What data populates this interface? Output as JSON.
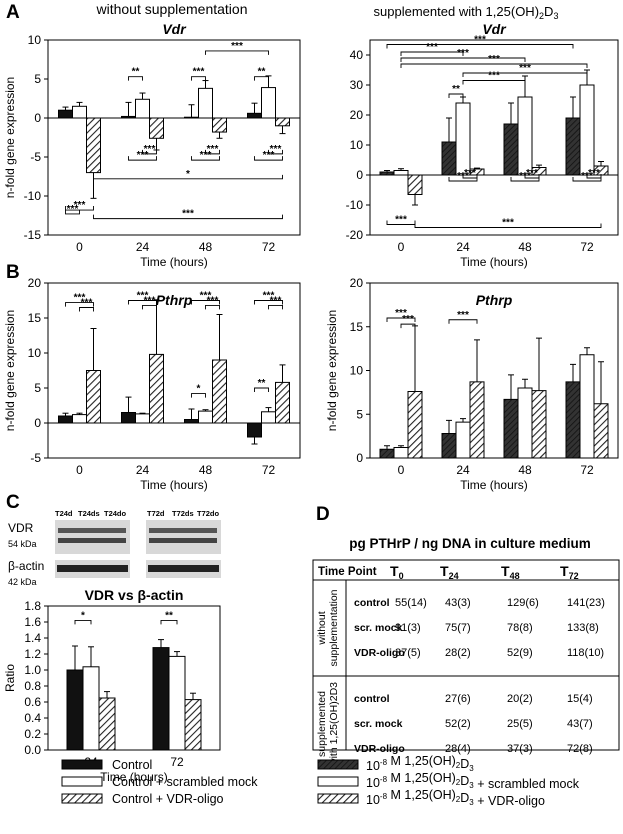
{
  "panels": {
    "A": {
      "letter": "A",
      "left_title": "without supplementation",
      "right_title_prefix": "supplemented with 1,25(OH)",
      "right_title_sub": "2",
      "right_title_suffix": "D",
      "right_title_sub2": "3"
    },
    "B": {
      "letter": "B"
    },
    "C": {
      "letter": "C"
    },
    "D": {
      "letter": "D"
    }
  },
  "chart_data": [
    {
      "id": "A-left",
      "type": "bar",
      "title": "Vdr",
      "xlabel": "Time (hours)",
      "ylabel": "n-fold gene expression",
      "categories": [
        "0",
        "24",
        "48",
        "72"
      ],
      "ylim": [
        -15,
        10
      ],
      "yticks": [
        -15,
        -10,
        -5,
        0,
        5,
        10
      ],
      "series": [
        {
          "name": "Control",
          "values": [
            1.0,
            0.2,
            0.1,
            0.6
          ],
          "errors": [
            0.4,
            1.8,
            1.6,
            1.3
          ]
        },
        {
          "name": "Control + scrambled mock",
          "values": [
            1.5,
            2.4,
            3.8,
            3.9
          ],
          "errors": [
            0.5,
            0.8,
            1.0,
            1.5
          ]
        },
        {
          "name": "Control + VDR-oligo",
          "values": [
            -7.0,
            -2.6,
            -1.8,
            -1.0
          ],
          "errors": [
            3.3,
            1.5,
            0.8,
            1.0
          ]
        }
      ],
      "annotations": [
        "**",
        "***",
        "**",
        "***",
        "***",
        "***",
        "***",
        "***",
        "***",
        "***",
        "***",
        "***",
        "*",
        "***"
      ]
    },
    {
      "id": "A-right",
      "type": "bar",
      "title": "Vdr",
      "xlabel": "Time (hours)",
      "ylabel": "",
      "categories": [
        "0",
        "24",
        "48",
        "72"
      ],
      "ylim": [
        -20,
        45
      ],
      "yticks": [
        -20,
        -10,
        0,
        10,
        20,
        30,
        40
      ],
      "series": [
        {
          "name": "10-8 M 1,25(OH)2D3",
          "values": [
            1.0,
            11.0,
            17.0,
            19.0
          ],
          "errors": [
            0.5,
            8.0,
            7.0,
            7.0
          ]
        },
        {
          "name": "10-8 M 1,25(OH)2D3 + scrambled mock",
          "values": [
            1.5,
            24.0,
            26.0,
            30.0
          ],
          "errors": [
            0.6,
            2.0,
            7.0,
            5.0
          ]
        },
        {
          "name": "10-8 M 1,25(OH)2D3 + VDR-oligo",
          "values": [
            -6.5,
            2.0,
            2.5,
            3.0
          ],
          "errors": [
            3.5,
            0.3,
            0.8,
            1.5
          ]
        }
      ],
      "annotations": [
        "***",
        "***",
        "***",
        "***",
        "***",
        "**",
        "***",
        "***",
        "***",
        "***",
        "***",
        "***",
        "***",
        "***",
        "***"
      ]
    },
    {
      "id": "B-left",
      "type": "bar",
      "title": "Pthrp",
      "xlabel": "Time (hours)",
      "ylabel": "n-fold gene expression",
      "categories": [
        "0",
        "24",
        "48",
        "72"
      ],
      "ylim": [
        -5,
        20
      ],
      "yticks": [
        -5,
        0,
        5,
        10,
        15,
        20
      ],
      "series": [
        {
          "name": "Control",
          "values": [
            1.0,
            1.5,
            0.5,
            -2.0
          ],
          "errors": [
            0.4,
            2.2,
            1.5,
            1.0
          ]
        },
        {
          "name": "Control + scrambled mock",
          "values": [
            1.2,
            1.3,
            1.7,
            1.6
          ],
          "errors": [
            0.2,
            0.1,
            0.2,
            0.6
          ]
        },
        {
          "name": "Control + VDR-oligo",
          "values": [
            7.5,
            9.8,
            9.0,
            5.8
          ],
          "errors": [
            6.0,
            7.8,
            6.5,
            2.5
          ]
        }
      ],
      "annotations": [
        "***",
        "***",
        "***",
        "***",
        "***",
        "***",
        "*",
        "***",
        "***",
        "**"
      ]
    },
    {
      "id": "B-right",
      "type": "bar",
      "title": "Pthrp",
      "xlabel": "Time (hours)",
      "ylabel": "n-fold gene expression",
      "categories": [
        "0",
        "24",
        "48",
        "72"
      ],
      "ylim": [
        0,
        20
      ],
      "yticks": [
        0,
        5,
        10,
        15,
        20
      ],
      "series": [
        {
          "name": "10-8 M 1,25(OH)2D3",
          "values": [
            1.0,
            2.8,
            6.7,
            8.7
          ],
          "errors": [
            0.4,
            1.5,
            2.8,
            2.0
          ]
        },
        {
          "name": "10-8 M 1,25(OH)2D3 + scrambled mock",
          "values": [
            1.2,
            4.1,
            8.0,
            11.8
          ],
          "errors": [
            0.2,
            0.4,
            1.0,
            0.8
          ]
        },
        {
          "name": "10-8 M 1,25(OH)2D3 + VDR-oligo",
          "values": [
            7.6,
            8.7,
            7.7,
            6.2
          ],
          "errors": [
            7.5,
            4.8,
            6.0,
            4.8
          ]
        }
      ],
      "annotations": [
        "***",
        "***",
        "***"
      ]
    },
    {
      "id": "C",
      "type": "bar",
      "title": "VDR vs β-actin",
      "xlabel": "Time (hours)",
      "ylabel": "Ratio",
      "categories": [
        "24",
        "72"
      ],
      "ylim": [
        0,
        1.8
      ],
      "yticks": [
        "0.0",
        "0.2",
        "0.4",
        "0.6",
        "0.8",
        "1.0",
        "1.2",
        "1.4",
        "1.6",
        "1.8"
      ],
      "series": [
        {
          "name": "Control",
          "values": [
            1.0,
            1.28
          ],
          "errors": [
            0.3,
            0.1
          ]
        },
        {
          "name": "Control + scrambled mock",
          "values": [
            1.04,
            1.17
          ],
          "errors": [
            0.25,
            0.06
          ]
        },
        {
          "name": "Control + VDR-oligo",
          "values": [
            0.65,
            0.63
          ],
          "errors": [
            0.08,
            0.08
          ]
        }
      ],
      "annotations": [
        "*",
        "**"
      ]
    }
  ],
  "blot": {
    "lane_labels_left": [
      "T24d",
      "T24ds",
      "T24do"
    ],
    "lane_labels_right": [
      "T72d",
      "T72ds",
      "T72do"
    ],
    "vdr_label": "VDR",
    "vdr_kda": "54 kDa",
    "actin_label": "β-actin",
    "actin_kda": "42 kDa"
  },
  "table": {
    "title": "pg PTHrP / ng DNA in culture medium",
    "header": {
      "label": "Time Point",
      "cols": [
        [
          "T",
          "0"
        ],
        [
          "T",
          "24"
        ],
        [
          "T",
          "48"
        ],
        [
          "T",
          "72"
        ]
      ]
    },
    "groups": [
      {
        "label_lines": [
          "without",
          "supplementation"
        ],
        "rows": [
          {
            "name": "control",
            "cells": [
              "55(14)",
              "43(3)",
              "129(6)",
              "141(23)"
            ]
          },
          {
            "name": "scr. mock",
            "cells": [
              "91(3)",
              "75(7)",
              "78(8)",
              "133(8)"
            ]
          },
          {
            "name": "VDR-oligo",
            "cells": [
              "37(5)",
              "28(2)",
              "52(9)",
              "118(10)"
            ]
          }
        ]
      },
      {
        "label_lines": [
          "supplemented",
          "with 1,25(OH)2D3"
        ],
        "rows": [
          {
            "name": "control",
            "cells": [
              "",
              "27(6)",
              "20(2)",
              "15(4)"
            ]
          },
          {
            "name": "scr. mock",
            "cells": [
              "",
              "52(2)",
              "25(5)",
              "43(7)"
            ]
          },
          {
            "name": "VDR-oligo",
            "cells": [
              "",
              "28(4)",
              "37(3)",
              "72(8)"
            ]
          }
        ]
      }
    ]
  },
  "legend_left": [
    "Control",
    "Control + scrambled mock",
    "Control + VDR-oligo"
  ],
  "legend_right": [
    "M  1,25(OH)",
    "M 1,25(OH)",
    "M 1,25(OH)"
  ],
  "legend_right_suffix": [
    "",
    " + scrambled mock",
    " + VDR-oligo"
  ],
  "legend_right_prefix": "10",
  "legend_right_exp": "-8",
  "colors": {
    "solid": "#111111",
    "open": "#ffffff",
    "hatch": "#222222"
  }
}
